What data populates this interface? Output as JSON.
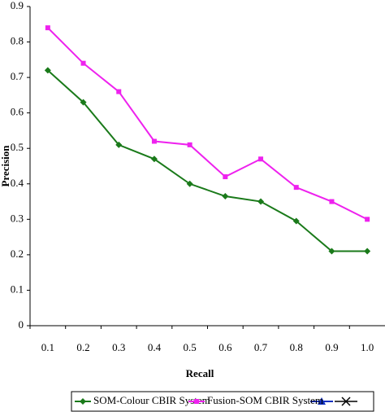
{
  "chart_data": {
    "type": "line",
    "xlabel": "Recall",
    "ylabel": "Precision",
    "categories": [
      "0.1",
      "0.2",
      "0.3",
      "0.4",
      "0.5",
      "0.6",
      "0.7",
      "0.8",
      "0.9",
      "1.0"
    ],
    "series": [
      {
        "name": "SOM-Colour CBIR System",
        "color": "#1a7a1a",
        "marker": "diamond",
        "values": [
          0.72,
          0.63,
          0.51,
          0.47,
          0.4,
          0.365,
          0.35,
          0.295,
          0.21,
          0.21
        ]
      },
      {
        "name": "Fusion-SOM CBIR System",
        "color": "#ee22ee",
        "marker": "square",
        "values": [
          0.84,
          0.74,
          0.66,
          0.52,
          0.51,
          0.42,
          0.47,
          0.39,
          0.35,
          0.3
        ]
      }
    ],
    "ylim": [
      0,
      0.9
    ],
    "yticks": [
      0,
      0.1,
      0.2,
      0.3,
      0.4,
      0.5,
      0.6,
      0.7,
      0.8,
      0.9
    ]
  }
}
